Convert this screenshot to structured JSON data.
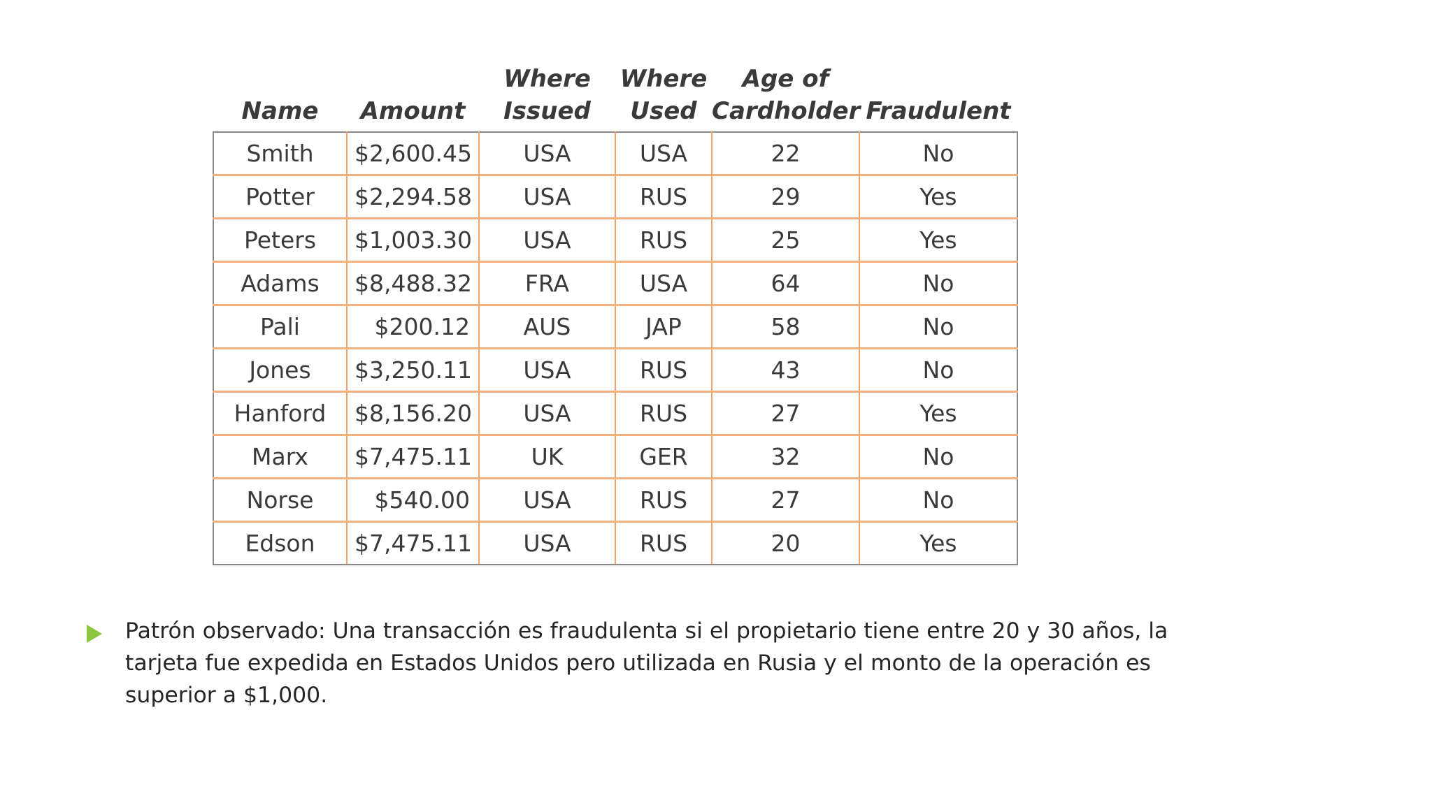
{
  "table": {
    "headers": [
      {
        "line1": "",
        "line2": "Name"
      },
      {
        "line1": "",
        "line2": "Amount"
      },
      {
        "line1": "Where",
        "line2": "Issued"
      },
      {
        "line1": "Where",
        "line2": "Used"
      },
      {
        "line1": "Age of",
        "line2": "Cardholder"
      },
      {
        "line1": "",
        "line2": "Fraudulent"
      }
    ],
    "rows": [
      {
        "name": "Smith",
        "amount": "$2,600.45",
        "issued": "USA",
        "used": "USA",
        "age": "22",
        "fraudulent": "No"
      },
      {
        "name": "Potter",
        "amount": "$2,294.58",
        "issued": "USA",
        "used": "RUS",
        "age": "29",
        "fraudulent": "Yes"
      },
      {
        "name": "Peters",
        "amount": "$1,003.30",
        "issued": "USA",
        "used": "RUS",
        "age": "25",
        "fraudulent": "Yes"
      },
      {
        "name": "Adams",
        "amount": "$8,488.32",
        "issued": "FRA",
        "used": "USA",
        "age": "64",
        "fraudulent": "No"
      },
      {
        "name": "Pali",
        "amount": "$200.12",
        "issued": "AUS",
        "used": "JAP",
        "age": "58",
        "fraudulent": "No"
      },
      {
        "name": "Jones",
        "amount": "$3,250.11",
        "issued": "USA",
        "used": "RUS",
        "age": "43",
        "fraudulent": "No"
      },
      {
        "name": "Hanford",
        "amount": "$8,156.20",
        "issued": "USA",
        "used": "RUS",
        "age": "27",
        "fraudulent": "Yes"
      },
      {
        "name": "Marx",
        "amount": "$7,475.11",
        "issued": "UK",
        "used": "GER",
        "age": "32",
        "fraudulent": "No"
      },
      {
        "name": "Norse",
        "amount": "$540.00",
        "issued": "USA",
        "used": "RUS",
        "age": "27",
        "fraudulent": "No"
      },
      {
        "name": "Edson",
        "amount": "$7,475.11",
        "issued": "USA",
        "used": "RUS",
        "age": "20",
        "fraudulent": "Yes"
      }
    ]
  },
  "note": {
    "bullet_icon": "triangle-bullet-icon",
    "bullet_color": "#8cc63e",
    "text": "Patrón observado: Una transacción es fraudulenta si el propietario tiene entre 20 y 30 años, la tarjeta fue expedida en Estados Unidos pero utilizada en Rusia y el monto de la operación es superior a $1,000."
  },
  "colors": {
    "cell_border": "#f6b07e",
    "outer_border": "#8a8a8a",
    "text": "#3a3a3a"
  }
}
